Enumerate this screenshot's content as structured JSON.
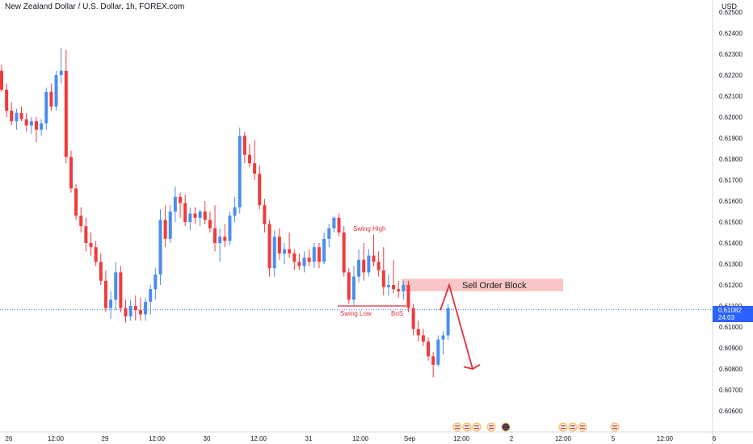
{
  "title": "New Zealand Dollar / U.S. Dollar, 1h, FOREX.com",
  "currency": "USD",
  "current_price": "0.61082",
  "countdown": "24:03",
  "colors": {
    "up": "#4a8ef0",
    "down": "#ef3b3b",
    "order_block": "#f8c6c6",
    "annotation": "#e0313c",
    "price_line": "#2962ff",
    "axis_text": "#131722"
  },
  "chart_data": {
    "type": "candlestick",
    "ylim": [
      0.6053,
      0.6255
    ],
    "y_ticks": [
      "0.62500",
      "0.62400",
      "0.62300",
      "0.62200",
      "0.62100",
      "0.62000",
      "0.61900",
      "0.61800",
      "0.61700",
      "0.61600",
      "0.61500",
      "0.61400",
      "0.61300",
      "0.61200",
      "0.61100",
      "0.61000",
      "0.60900",
      "0.60800",
      "0.60700",
      "0.60600"
    ],
    "x_ticks": [
      "26",
      "12:00",
      "29",
      "12:00",
      "30",
      "12:00",
      "31",
      "12:00",
      "Sep",
      "12:00",
      "2",
      "12:00",
      "5",
      "12:00",
      "6"
    ],
    "candles": [
      [
        0.6222,
        0.6225,
        0.6212,
        0.6213
      ],
      [
        0.6213,
        0.6216,
        0.62,
        0.6203
      ],
      [
        0.6203,
        0.6207,
        0.6196,
        0.6198
      ],
      [
        0.6198,
        0.6204,
        0.6194,
        0.6202
      ],
      [
        0.6202,
        0.6205,
        0.6198,
        0.6199
      ],
      [
        0.6199,
        0.6202,
        0.6193,
        0.6196
      ],
      [
        0.6196,
        0.62,
        0.6192,
        0.6198
      ],
      [
        0.6198,
        0.62,
        0.6188,
        0.6194
      ],
      [
        0.6194,
        0.6199,
        0.6191,
        0.6197
      ],
      [
        0.6197,
        0.6214,
        0.6194,
        0.6212
      ],
      [
        0.6212,
        0.6216,
        0.6203,
        0.6205
      ],
      [
        0.6205,
        0.6222,
        0.6203,
        0.622
      ],
      [
        0.622,
        0.6233,
        0.6216,
        0.6222
      ],
      [
        0.6222,
        0.6232,
        0.6178,
        0.6181
      ],
      [
        0.6181,
        0.6184,
        0.6164,
        0.6166
      ],
      [
        0.6166,
        0.6168,
        0.6151,
        0.6153
      ],
      [
        0.6153,
        0.6157,
        0.6145,
        0.6148
      ],
      [
        0.6148,
        0.6152,
        0.6136,
        0.614
      ],
      [
        0.614,
        0.6145,
        0.6134,
        0.6138
      ],
      [
        0.6138,
        0.6141,
        0.6129,
        0.6131
      ],
      [
        0.6131,
        0.6135,
        0.612,
        0.6122
      ],
      [
        0.6122,
        0.6127,
        0.6107,
        0.6109
      ],
      [
        0.6109,
        0.6117,
        0.6104,
        0.6113
      ],
      [
        0.6113,
        0.6131,
        0.6108,
        0.6126
      ],
      [
        0.6126,
        0.6129,
        0.6107,
        0.6109
      ],
      [
        0.6109,
        0.6113,
        0.6102,
        0.6105
      ],
      [
        0.6105,
        0.6113,
        0.6103,
        0.611
      ],
      [
        0.611,
        0.6115,
        0.6103,
        0.6108
      ],
      [
        0.6108,
        0.6114,
        0.6103,
        0.6106
      ],
      [
        0.6106,
        0.6114,
        0.6103,
        0.6112
      ],
      [
        0.6112,
        0.612,
        0.6106,
        0.6118
      ],
      [
        0.6118,
        0.6128,
        0.6113,
        0.6125
      ],
      [
        0.6125,
        0.6156,
        0.612,
        0.6151
      ],
      [
        0.6151,
        0.6158,
        0.6138,
        0.6142
      ],
      [
        0.6142,
        0.6158,
        0.614,
        0.6155
      ],
      [
        0.6155,
        0.6167,
        0.615,
        0.6162
      ],
      [
        0.6162,
        0.6164,
        0.6152,
        0.6159
      ],
      [
        0.6159,
        0.6163,
        0.6148,
        0.615
      ],
      [
        0.615,
        0.6157,
        0.6146,
        0.6154
      ],
      [
        0.6154,
        0.6157,
        0.6149,
        0.6152
      ],
      [
        0.6152,
        0.6156,
        0.6148,
        0.6155
      ],
      [
        0.6155,
        0.616,
        0.6149,
        0.6151
      ],
      [
        0.6151,
        0.6155,
        0.6145,
        0.6147
      ],
      [
        0.6147,
        0.6158,
        0.6136,
        0.614
      ],
      [
        0.614,
        0.6147,
        0.6131,
        0.6143
      ],
      [
        0.6143,
        0.6149,
        0.6138,
        0.6141
      ],
      [
        0.6141,
        0.6155,
        0.6139,
        0.6153
      ],
      [
        0.6153,
        0.6162,
        0.615,
        0.6157
      ],
      [
        0.6157,
        0.6195,
        0.6154,
        0.6191
      ],
      [
        0.6191,
        0.6193,
        0.6178,
        0.6182
      ],
      [
        0.6182,
        0.6187,
        0.6176,
        0.6178
      ],
      [
        0.6178,
        0.6189,
        0.617,
        0.6173
      ],
      [
        0.6173,
        0.6177,
        0.6156,
        0.6158
      ],
      [
        0.6158,
        0.6161,
        0.6145,
        0.6149
      ],
      [
        0.6149,
        0.6151,
        0.6124,
        0.6128
      ],
      [
        0.6128,
        0.6146,
        0.6124,
        0.6143
      ],
      [
        0.6143,
        0.6147,
        0.6132,
        0.6135
      ],
      [
        0.6135,
        0.614,
        0.613,
        0.6137
      ],
      [
        0.6137,
        0.6145,
        0.6133,
        0.6135
      ],
      [
        0.6135,
        0.6137,
        0.6127,
        0.6131
      ],
      [
        0.6131,
        0.6135,
        0.6127,
        0.6129
      ],
      [
        0.6129,
        0.6136,
        0.6126,
        0.6133
      ],
      [
        0.6133,
        0.6137,
        0.6129,
        0.6131
      ],
      [
        0.6131,
        0.614,
        0.6128,
        0.6138
      ],
      [
        0.6138,
        0.614,
        0.6128,
        0.6131
      ],
      [
        0.6131,
        0.6145,
        0.613,
        0.6142
      ],
      [
        0.6142,
        0.6149,
        0.6138,
        0.6147
      ],
      [
        0.6147,
        0.6153,
        0.6145,
        0.6152
      ],
      [
        0.6152,
        0.6154,
        0.6143,
        0.6145
      ],
      [
        0.6145,
        0.6148,
        0.6124,
        0.6126
      ],
      [
        0.6126,
        0.6128,
        0.6111,
        0.6113
      ],
      [
        0.6113,
        0.6129,
        0.611,
        0.6124
      ],
      [
        0.6124,
        0.6137,
        0.6121,
        0.6132
      ],
      [
        0.6132,
        0.614,
        0.6122,
        0.6126
      ],
      [
        0.6126,
        0.6137,
        0.6124,
        0.6134
      ],
      [
        0.6134,
        0.6144,
        0.6129,
        0.6131
      ],
      [
        0.6131,
        0.6136,
        0.6124,
        0.6127
      ],
      [
        0.6127,
        0.6138,
        0.6115,
        0.6119
      ],
      [
        0.6119,
        0.6125,
        0.6115,
        0.612
      ],
      [
        0.612,
        0.6132,
        0.6116,
        0.6118
      ],
      [
        0.6118,
        0.6122,
        0.6114,
        0.6117
      ],
      [
        0.6117,
        0.6122,
        0.6113,
        0.612
      ],
      [
        0.612,
        0.6122,
        0.6107,
        0.6109
      ],
      [
        0.6109,
        0.6111,
        0.6096,
        0.6099
      ],
      [
        0.6099,
        0.6103,
        0.6093,
        0.6096
      ],
      [
        0.6096,
        0.6099,
        0.6091,
        0.6093
      ],
      [
        0.6093,
        0.6095,
        0.6084,
        0.6086
      ],
      [
        0.6086,
        0.6088,
        0.6076,
        0.6082
      ],
      [
        0.6082,
        0.6096,
        0.6081,
        0.6094
      ],
      [
        0.6094,
        0.6098,
        0.6087,
        0.6096
      ],
      [
        0.6096,
        0.6111,
        0.6094,
        0.6109
      ]
    ],
    "annotations": {
      "swing_high": "Swing High",
      "swing_low": "Swing Low",
      "bos": "BoS",
      "order_block": "Sell Order Block",
      "order_block_range": [
        0.6117,
        0.6123
      ],
      "swing_low_price": 0.611
    }
  }
}
